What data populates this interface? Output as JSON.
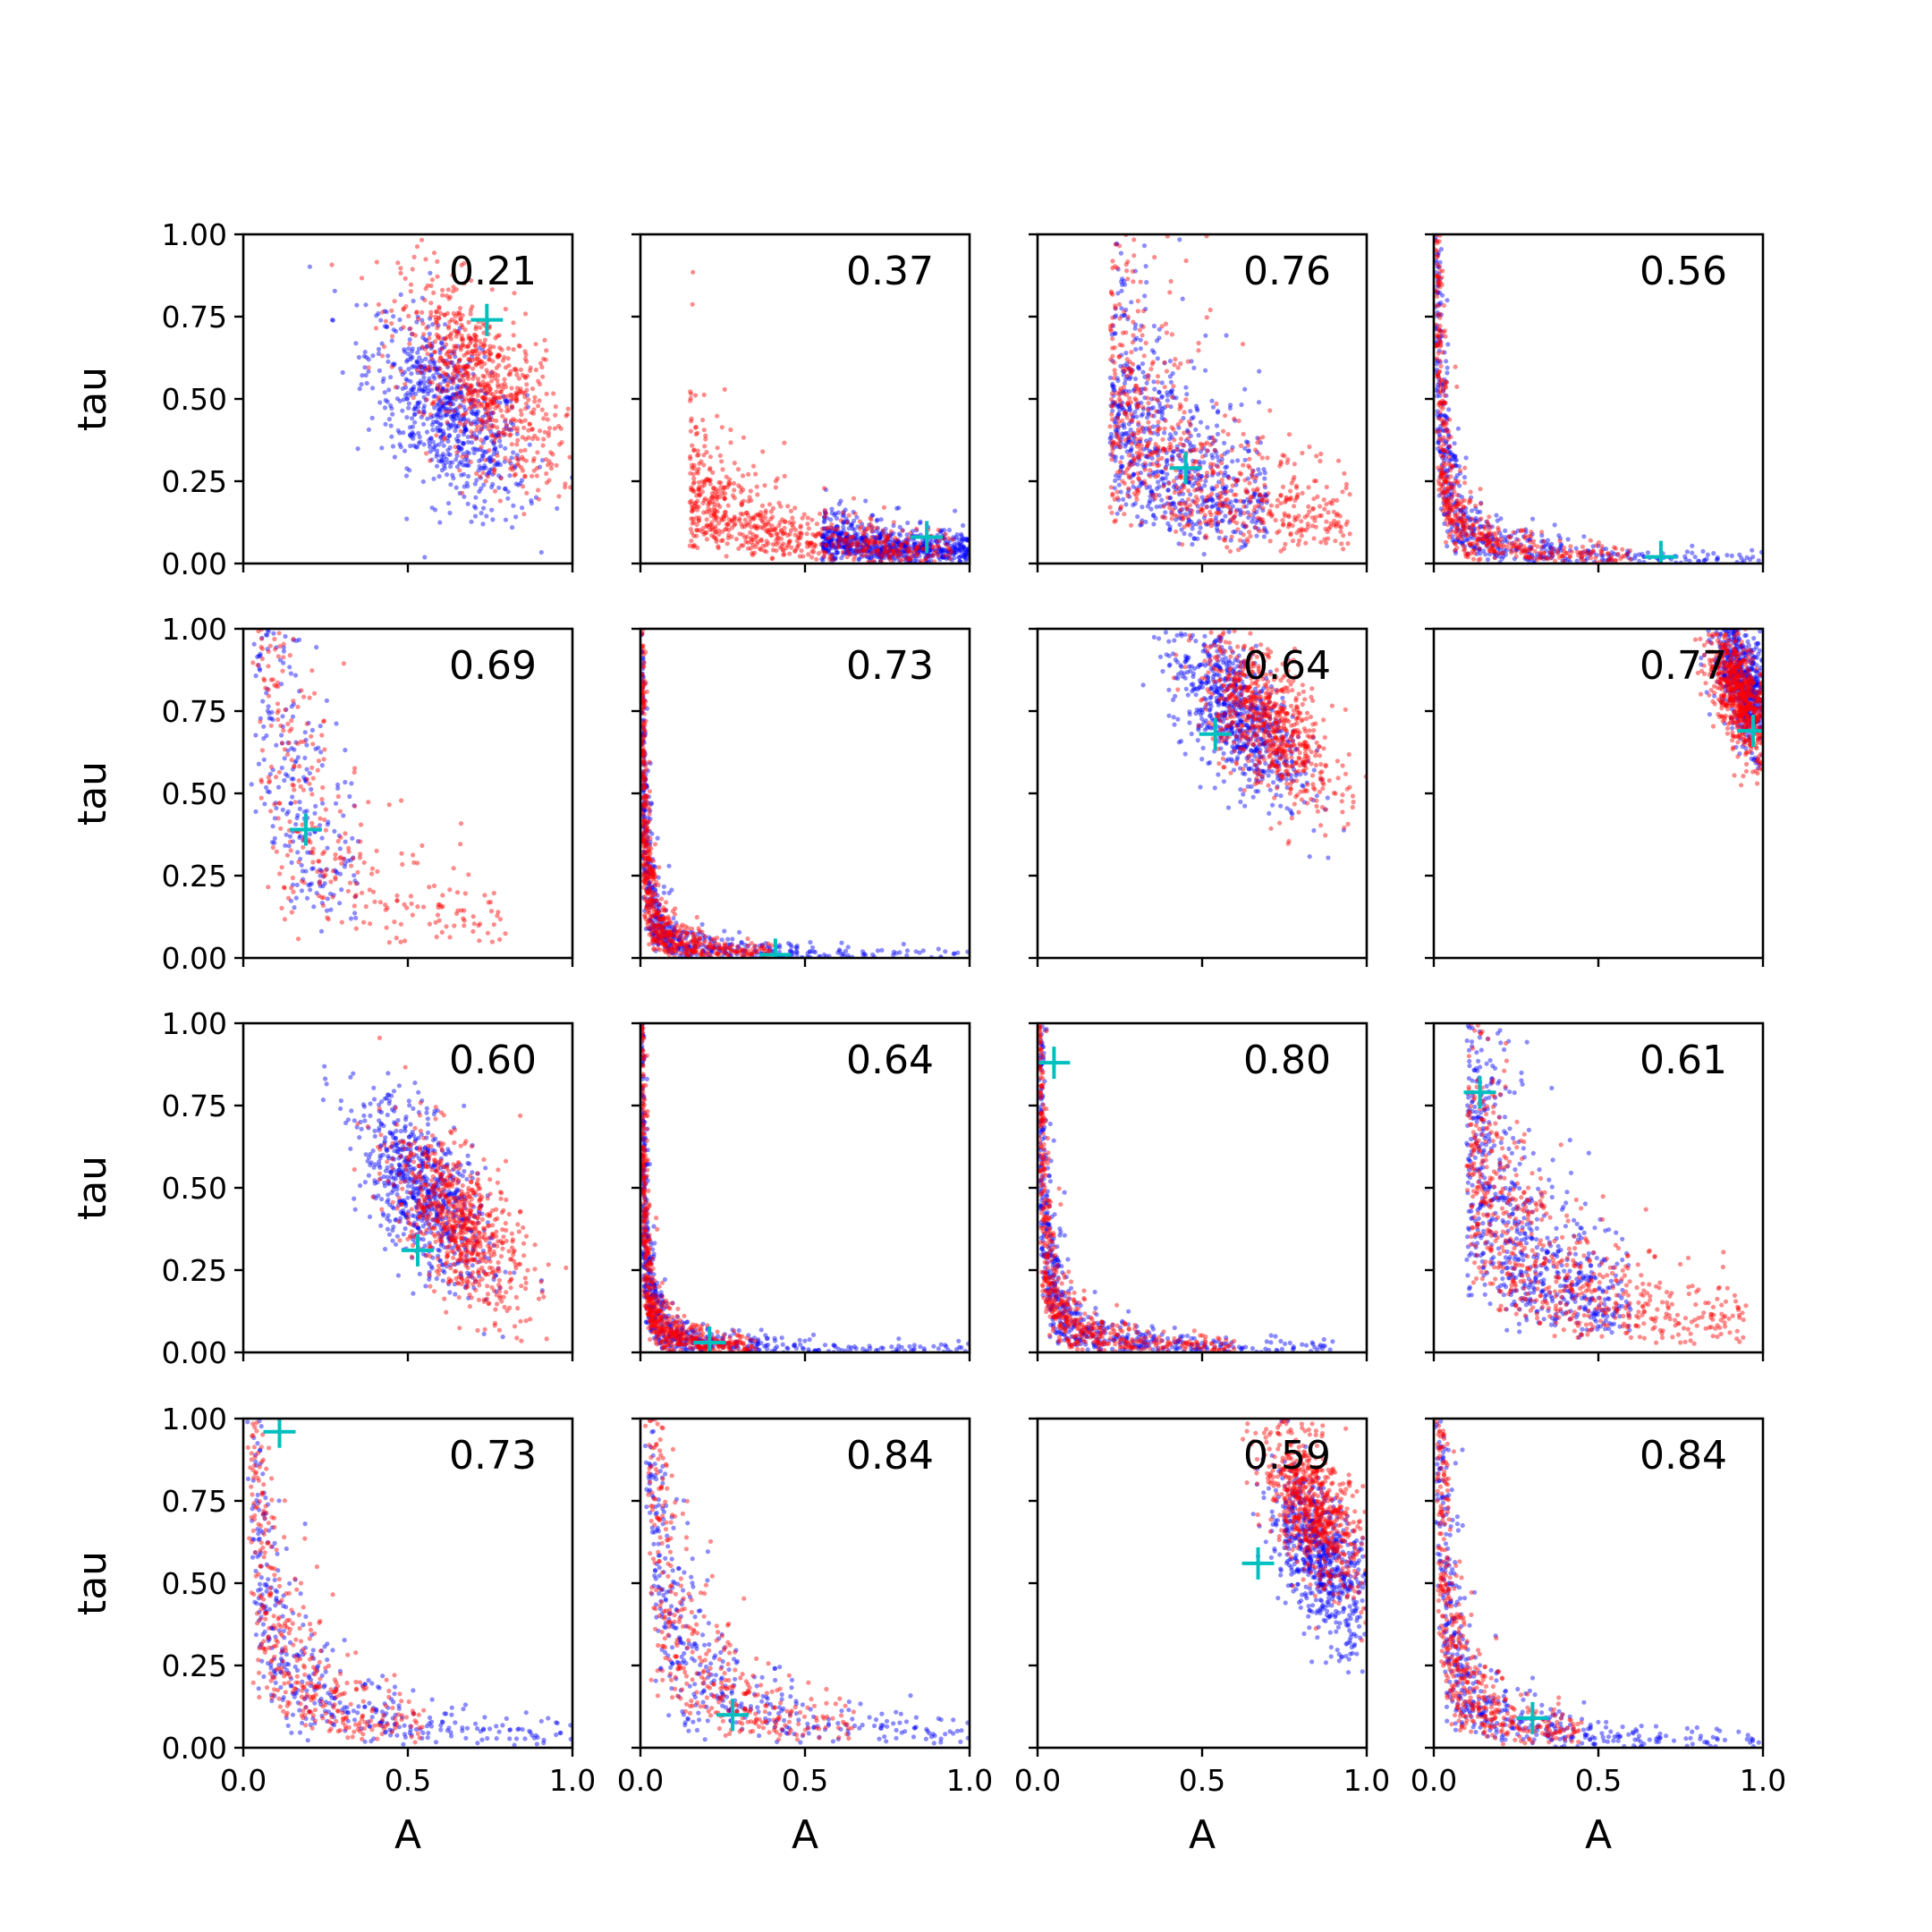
{
  "chart_data": {
    "type": "scatter",
    "layout": {
      "rows": 4,
      "cols": 4,
      "sharex": true,
      "sharey": true
    },
    "xlabel": "A",
    "ylabel": "tau",
    "xlim": [
      0.0,
      1.0
    ],
    "ylim": [
      0.0,
      1.0
    ],
    "x_ticks": [
      0.0,
      0.5,
      1.0
    ],
    "x_tick_labels": [
      "0.0",
      "0.5",
      "1.0"
    ],
    "y_ticks": [
      0.0,
      0.25,
      0.5,
      0.75,
      1.0
    ],
    "y_tick_labels": [
      "0.00",
      "0.25",
      "0.50",
      "0.75",
      "1.00"
    ],
    "grid": false,
    "colors": {
      "series_a": "#0000ff",
      "series_b": "#ff0000",
      "marker": "#00bfbf"
    },
    "panels": [
      {
        "label": "0.21",
        "marker": [
          0.74,
          0.74
        ],
        "shape": "blob",
        "blue_center": [
          0.62,
          0.45
        ],
        "red_center": [
          0.72,
          0.55
        ],
        "spread": [
          0.12,
          0.15
        ]
      },
      {
        "label": "0.37",
        "marker": [
          0.87,
          0.08
        ],
        "shape": "hyper",
        "k": 0.04,
        "blue_range": [
          0.55,
          1.0
        ],
        "red_range": [
          0.15,
          0.95
        ]
      },
      {
        "label": "0.76",
        "marker": [
          0.45,
          0.29
        ],
        "shape": "hyper",
        "k": 0.13,
        "blue_range": [
          0.22,
          0.7
        ],
        "red_range": [
          0.22,
          0.95
        ]
      },
      {
        "label": "0.56",
        "marker": [
          0.69,
          0.02
        ],
        "shape": "hyper",
        "k": 0.012,
        "blue_range": [
          0.0,
          1.0
        ],
        "red_range": [
          0.0,
          0.6
        ]
      },
      {
        "label": "0.69",
        "marker": [
          0.19,
          0.39
        ],
        "shape": "hyper",
        "k": 0.09,
        "blue_range": [
          0.0,
          0.35
        ],
        "red_range": [
          0.0,
          0.8
        ]
      },
      {
        "label": "0.73",
        "marker": [
          0.41,
          0.01
        ],
        "shape": "hyper",
        "k": 0.006,
        "blue_range": [
          0.0,
          1.0
        ],
        "red_range": [
          0.0,
          0.4
        ]
      },
      {
        "label": "0.64",
        "marker": [
          0.54,
          0.68
        ],
        "shape": "blob",
        "blue_center": [
          0.6,
          0.75
        ],
        "red_center": [
          0.7,
          0.72
        ],
        "spread": [
          0.1,
          0.13
        ]
      },
      {
        "label": "0.77",
        "marker": [
          0.97,
          0.69
        ],
        "shape": "blob",
        "blue_center": [
          0.95,
          0.82
        ],
        "red_center": [
          0.93,
          0.8
        ],
        "spread": [
          0.05,
          0.1
        ]
      },
      {
        "label": "0.60",
        "marker": [
          0.53,
          0.31
        ],
        "shape": "blob",
        "blue_center": [
          0.55,
          0.48
        ],
        "red_center": [
          0.65,
          0.4
        ],
        "spread": [
          0.1,
          0.14
        ]
      },
      {
        "label": "0.64",
        "marker": [
          0.21,
          0.03
        ],
        "shape": "hyper",
        "k": 0.006,
        "blue_range": [
          0.0,
          1.0
        ],
        "red_range": [
          0.0,
          0.35
        ]
      },
      {
        "label": "0.80",
        "marker": [
          0.05,
          0.88
        ],
        "shape": "hyper",
        "k": 0.01,
        "blue_range": [
          0.0,
          0.9
        ],
        "red_range": [
          0.0,
          0.6
        ]
      },
      {
        "label": "0.61",
        "marker": [
          0.14,
          0.79
        ],
        "shape": "hyper",
        "k": 0.09,
        "blue_range": [
          0.1,
          0.6
        ],
        "red_range": [
          0.1,
          0.95
        ]
      },
      {
        "label": "0.73",
        "marker": [
          0.11,
          0.96
        ],
        "shape": "hyper",
        "k": 0.04,
        "blue_range": [
          0.0,
          1.0
        ],
        "red_range": [
          0.0,
          0.55
        ]
      },
      {
        "label": "0.84",
        "marker": [
          0.28,
          0.1
        ],
        "shape": "hyper",
        "k": 0.045,
        "blue_range": [
          0.0,
          1.0
        ],
        "red_range": [
          0.0,
          0.65
        ]
      },
      {
        "label": "0.59",
        "marker": [
          0.67,
          0.56
        ],
        "shape": "blob",
        "blue_center": [
          0.86,
          0.58
        ],
        "red_center": [
          0.84,
          0.72
        ],
        "spread": [
          0.08,
          0.13
        ]
      },
      {
        "label": "0.84",
        "marker": [
          0.3,
          0.09
        ],
        "shape": "hyper",
        "k": 0.02,
        "blue_range": [
          0.0,
          1.0
        ],
        "red_range": [
          0.0,
          0.45
        ]
      }
    ]
  }
}
